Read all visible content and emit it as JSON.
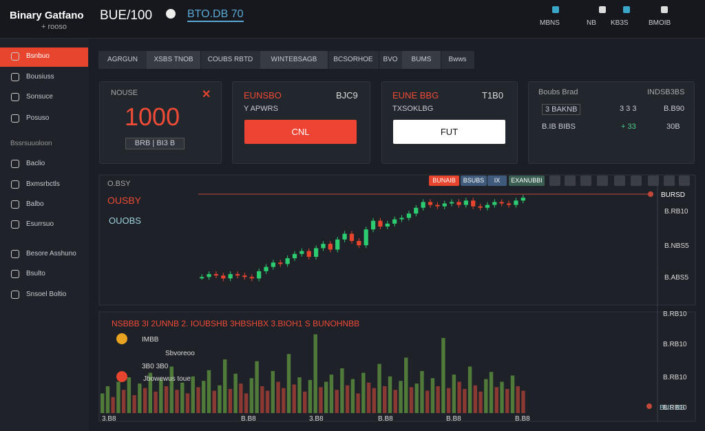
{
  "header": {
    "logo_title": "Binary Gatfano",
    "logo_sub": "+ rooso",
    "pair": "BUE/100",
    "timer": "BTO.DB 70",
    "nav": [
      "MBNS",
      "NB",
      "KB3S",
      "BMOIB"
    ]
  },
  "sidebar": {
    "items": [
      "Bsnbuo",
      "Bousiuss",
      "Sonsuce",
      "Posuso"
    ],
    "section": "Bssrsuuoloon",
    "items2": [
      "Baclio",
      "Bxmsrbctls",
      "Balbo",
      "Esurrsuo"
    ],
    "items3": [
      "Besore Asshuno",
      "Bsulto",
      "Snsoel Boltio"
    ]
  },
  "tabs": [
    "AGRGUN",
    "XSBS TNOB",
    "COUBS RBTD",
    "WINTEBSAGB",
    "BCSORHOE",
    "BVO",
    "BUMS",
    "Bwws"
  ],
  "cards": {
    "amount": {
      "label": "NOUSE",
      "value": "1000",
      "field": "BRB | BI3 B"
    },
    "call": {
      "title": "EUNSBO",
      "price": "BJC9",
      "sub": "Y APWRS",
      "button": "CNL"
    },
    "put": {
      "title": "EUNE BBG",
      "price": "T1B0",
      "sub": "TXSOKLBG",
      "button": "FUT"
    },
    "stats": {
      "title": "Boubs Brad",
      "right": "INDSB3BS",
      "rows": [
        [
          "3 BAKNB",
          "3 3 3",
          "B.B90"
        ],
        [
          "B.IB BIBS",
          "+ 33",
          "30B"
        ]
      ]
    }
  },
  "chart": {
    "label1": "O.BSY",
    "label2": "OUSBY",
    "label3": "OUOBS",
    "toolbar": [
      "BUNAIB",
      "BSUBS",
      "IX",
      "EXANUBBI"
    ],
    "price_label": "BURSD",
    "yaxis": [
      "B.RB10",
      "B.NBS5",
      "B.ABS5"
    ],
    "ylim": [
      90,
      175
    ],
    "closes": [
      108,
      110,
      109,
      107,
      110,
      109,
      108,
      107,
      112,
      115,
      118,
      117,
      121,
      124,
      126,
      122,
      128,
      131,
      127,
      134,
      138,
      133,
      130,
      141,
      147,
      143,
      145,
      148,
      149,
      152,
      156,
      160,
      158,
      157,
      159,
      160,
      158,
      161,
      157,
      156,
      158,
      160,
      159,
      158,
      161,
      163
    ]
  },
  "volume": {
    "title": "NSBBB 3I 2UNNB 2. IOUBSHB 3HBSHBX 3.BIOH1 S BUNOHNBB",
    "legend": [
      "IMBB",
      "Sbvoreoo",
      "3B0 3B0",
      "Jbowewus toue"
    ],
    "yaxis": [
      "B.RB10",
      "B.RB10",
      "B.RB10",
      "B.RB10"
    ],
    "price_label": "BUS BB",
    "xaxis": [
      "3.B8",
      "B.B8",
      "3.B8",
      "B.B8",
      "B.B8",
      "B.B8"
    ],
    "ylim": [
      0,
      100
    ],
    "values": [
      22,
      30,
      18,
      35,
      26,
      40,
      20,
      33,
      28,
      45,
      24,
      38,
      30,
      52,
      26,
      34,
      22,
      41,
      29,
      36,
      48,
      25,
      31,
      60,
      27,
      44,
      33,
      22,
      39,
      58,
      30,
      25,
      47,
      35,
      28,
      66,
      32,
      40,
      24,
      37,
      88,
      29,
      35,
      43,
      26,
      50,
      31,
      38,
      22,
      45,
      34,
      28,
      55,
      30,
      41,
      26,
      36,
      62,
      29,
      33,
      47,
      25,
      39,
      30,
      84,
      28,
      43,
      35,
      27,
      52,
      31,
      24,
      38,
      46,
      29,
      35,
      27,
      42,
      30,
      25
    ]
  }
}
